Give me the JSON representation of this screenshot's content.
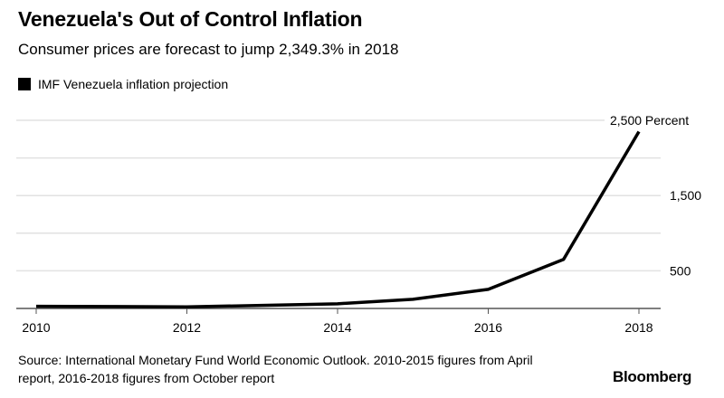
{
  "header": {
    "title": "Venezuela's Out of Control Inflation",
    "subtitle": "Consumer prices are forecast to jump 2,349.3% in 2018"
  },
  "chart_data": {
    "type": "line",
    "title": "Venezuela's Out of Control Inflation",
    "subtitle": "Consumer prices are forecast to jump 2,349.3% in 2018",
    "x": [
      2010,
      2011,
      2012,
      2013,
      2014,
      2015,
      2016,
      2017,
      2018
    ],
    "series": [
      {
        "name": "IMF Venezuela inflation projection",
        "color": "#000000",
        "values": [
          28.2,
          26.1,
          21.1,
          40.6,
          62.2,
          121.7,
          254.4,
          652.7,
          2349.3
        ]
      }
    ],
    "xlim": [
      2010,
      2018
    ],
    "ylim": [
      0,
      2500
    ],
    "x_ticks": [
      "2010",
      "2012",
      "2014",
      "2016",
      "2018"
    ],
    "y_gridlines": [
      500,
      1000,
      1500,
      2000,
      2500
    ],
    "y_tick_labels": [
      {
        "value": 500,
        "label": "500"
      },
      {
        "value": 1500,
        "label": "1,500"
      },
      {
        "value": 2500,
        "label": "2,500 Percent"
      }
    ],
    "y_axis_side": "right",
    "grid": true,
    "legend_position": "top-left",
    "gridline_color": "#e2e2e2"
  },
  "footer": {
    "source_line1": "Source: International Monetary Fund World Economic Outlook. 2010-2015 figures from April",
    "source_line2": "report, 2016-2018 figures from October report",
    "brand": "Bloomberg"
  }
}
